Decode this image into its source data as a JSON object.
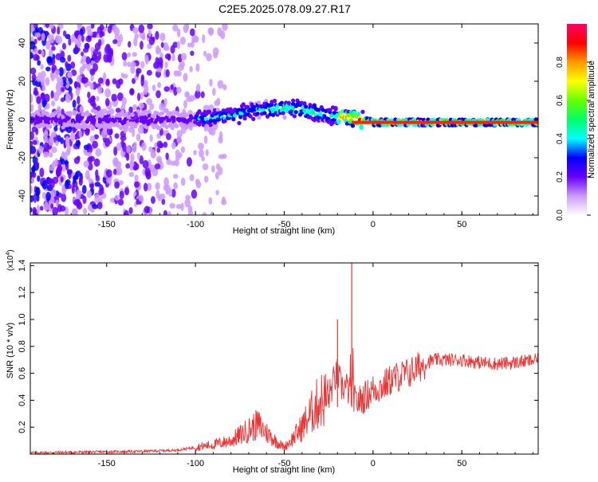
{
  "title": "C2E5.2025.078.09.27.R17",
  "chart_data": [
    {
      "type": "heatmap",
      "xlabel": "Height of straight line (km)",
      "ylabel": "Frequency (Hz)",
      "xlim": [
        -193,
        93
      ],
      "ylim": [
        -50,
        50
      ],
      "xticks": [
        -150,
        -100,
        -50,
        0,
        50
      ],
      "yticks": [
        -40,
        -20,
        0,
        20,
        40
      ],
      "colorbar": {
        "label": "Normalized spectral amplitude",
        "range": [
          0,
          1
        ],
        "ticks": [
          "0.0",
          "0.2",
          "0.4",
          "0.6",
          "0.8"
        ],
        "colors": [
          "#ffffff",
          "#cc99ff",
          "#6600ff",
          "#0000ff",
          "#00ffff",
          "#00ff66",
          "#66ff00",
          "#ffff00",
          "#ff9900",
          "#ff0000",
          "#ff0066"
        ]
      },
      "ridge": {
        "x": [
          -193,
          -150,
          -120,
          -100,
          -80,
          -65,
          -50,
          -40,
          -30,
          -20,
          -10,
          0,
          20,
          50,
          93
        ],
        "y": [
          0,
          0,
          0,
          0,
          2,
          5,
          6,
          5,
          3,
          2,
          0.5,
          -1.5,
          -1.5,
          -1.5,
          -1.5
        ]
      }
    },
    {
      "type": "line",
      "xlabel": "Height of straight line (km)",
      "ylabel": "SNR (10 * v/v)",
      "yexponent": "(x10",
      "yexponent_power": "4",
      "yexponent_close": ")",
      "xlim": [
        -193,
        93
      ],
      "ylim": [
        0,
        1.42
      ],
      "xticks": [
        -150,
        -100,
        -50,
        0,
        50
      ],
      "yticks": [
        0.2,
        0.4,
        0.6,
        0.8,
        1.0,
        1.2,
        1.4
      ],
      "ytick_labels": [
        "0.2",
        "0.4",
        "0.6",
        "0.8",
        "1.0",
        "1.2",
        "1.4"
      ],
      "series": [
        {
          "color": "#ee3333",
          "x": [
            -193,
            -160,
            -130,
            -110,
            -100,
            -90,
            -80,
            -75,
            -70,
            -65,
            -60,
            -55,
            -50,
            -45,
            -40,
            -35,
            -30,
            -25,
            -22,
            -20,
            -18,
            -15,
            -13,
            -12,
            -11,
            -10,
            -5,
            0,
            5,
            10,
            15,
            20,
            25,
            30,
            35,
            40,
            50,
            60,
            70,
            80,
            93
          ],
          "y": [
            0.01,
            0.015,
            0.02,
            0.03,
            0.05,
            0.07,
            0.1,
            0.14,
            0.18,
            0.22,
            0.16,
            0.1,
            0.05,
            0.12,
            0.2,
            0.3,
            0.4,
            0.42,
            0.55,
            0.6,
            0.5,
            0.5,
            0.45,
            1.4,
            0.45,
            0.38,
            0.42,
            0.48,
            0.5,
            0.55,
            0.58,
            0.6,
            0.64,
            0.68,
            0.7,
            0.7,
            0.7,
            0.68,
            0.67,
            0.68,
            0.7
          ]
        }
      ],
      "spikes": [
        {
          "x": -20,
          "y": 1.0
        },
        {
          "x": -12,
          "y": 1.42
        }
      ]
    }
  ]
}
